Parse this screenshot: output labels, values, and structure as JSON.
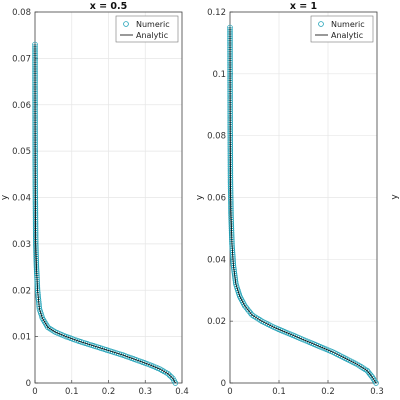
{
  "chart_data": [
    {
      "type": "scatter",
      "title": "x = 0.5",
      "xlabel": "",
      "ylabel": "y",
      "xlim": [
        0,
        0.4
      ],
      "ylim": [
        0,
        0.08
      ],
      "xticks": [
        "0",
        "0.1",
        "0.2",
        "0.3",
        "0.4"
      ],
      "yticks": [
        "0",
        "0.01",
        "0.02",
        "0.03",
        "0.04",
        "0.05",
        "0.06",
        "0.07",
        "0.08"
      ],
      "grid": true,
      "legend_position": "top-right",
      "legend": [
        "Numeric",
        "Analytic"
      ],
      "series": [
        {
          "name": "Numeric",
          "marker": "circle",
          "color": "#1a9fb5",
          "x": [
            0.382,
            0.375,
            0.362,
            0.34,
            0.31,
            0.275,
            0.24,
            0.2,
            0.16,
            0.12,
            0.085,
            0.055,
            0.035,
            0.02,
            0.012,
            0.007,
            0.004,
            0.002,
            0.001,
            0.0005,
            0.0002,
            0
          ],
          "y": [
            0,
            0.001,
            0.002,
            0.003,
            0.004,
            0.005,
            0.006,
            0.007,
            0.008,
            0.009,
            0.01,
            0.011,
            0.012,
            0.014,
            0.016,
            0.02,
            0.025,
            0.03,
            0.04,
            0.05,
            0.06,
            0.073
          ]
        },
        {
          "name": "Analytic",
          "marker": "line",
          "color": "#000000",
          "x": [
            0.382,
            0.375,
            0.362,
            0.34,
            0.31,
            0.275,
            0.24,
            0.2,
            0.16,
            0.12,
            0.085,
            0.055,
            0.035,
            0.02,
            0.012,
            0.007,
            0.004,
            0.002,
            0.001,
            0.0005,
            0.0002,
            0
          ],
          "y": [
            0,
            0.001,
            0.002,
            0.003,
            0.004,
            0.005,
            0.006,
            0.007,
            0.008,
            0.009,
            0.01,
            0.011,
            0.012,
            0.014,
            0.016,
            0.02,
            0.025,
            0.03,
            0.04,
            0.05,
            0.06,
            0.073
          ]
        }
      ]
    },
    {
      "type": "scatter",
      "title": "x = 1",
      "xlabel": "",
      "ylabel": "y",
      "xlim": [
        0,
        0.3
      ],
      "ylim": [
        0,
        0.12
      ],
      "xticks": [
        "0",
        "0.1",
        "0.2",
        "0.3"
      ],
      "yticks": [
        "0",
        "0.02",
        "0.04",
        "0.06",
        "0.08",
        "0.1",
        "0.12"
      ],
      "grid": true,
      "legend_position": "top-right",
      "legend": [
        "Numeric",
        "Analytic"
      ],
      "series": [
        {
          "name": "Numeric",
          "marker": "circle",
          "color": "#1a9fb5",
          "x": [
            0.298,
            0.29,
            0.28,
            0.26,
            0.235,
            0.21,
            0.18,
            0.15,
            0.12,
            0.09,
            0.065,
            0.045,
            0.03,
            0.02,
            0.012,
            0.007,
            0.004,
            0.002,
            0.001,
            0.0005,
            0.0002,
            0
          ],
          "y": [
            0,
            0.002,
            0.004,
            0.006,
            0.008,
            0.01,
            0.012,
            0.014,
            0.016,
            0.018,
            0.02,
            0.022,
            0.025,
            0.028,
            0.032,
            0.038,
            0.045,
            0.055,
            0.065,
            0.08,
            0.1,
            0.115
          ]
        },
        {
          "name": "Analytic",
          "marker": "line",
          "color": "#000000",
          "x": [
            0.298,
            0.29,
            0.28,
            0.26,
            0.235,
            0.21,
            0.18,
            0.15,
            0.12,
            0.09,
            0.065,
            0.045,
            0.03,
            0.02,
            0.012,
            0.007,
            0.004,
            0.002,
            0.001,
            0.0005,
            0.0002,
            0
          ],
          "y": [
            0,
            0.002,
            0.004,
            0.006,
            0.008,
            0.01,
            0.012,
            0.014,
            0.016,
            0.018,
            0.02,
            0.022,
            0.025,
            0.028,
            0.032,
            0.038,
            0.045,
            0.055,
            0.065,
            0.08,
            0.1,
            0.115
          ]
        }
      ]
    },
    {
      "type": "scatter",
      "title": "",
      "xlabel": "",
      "ylabel": "y",
      "grid": false
    }
  ]
}
